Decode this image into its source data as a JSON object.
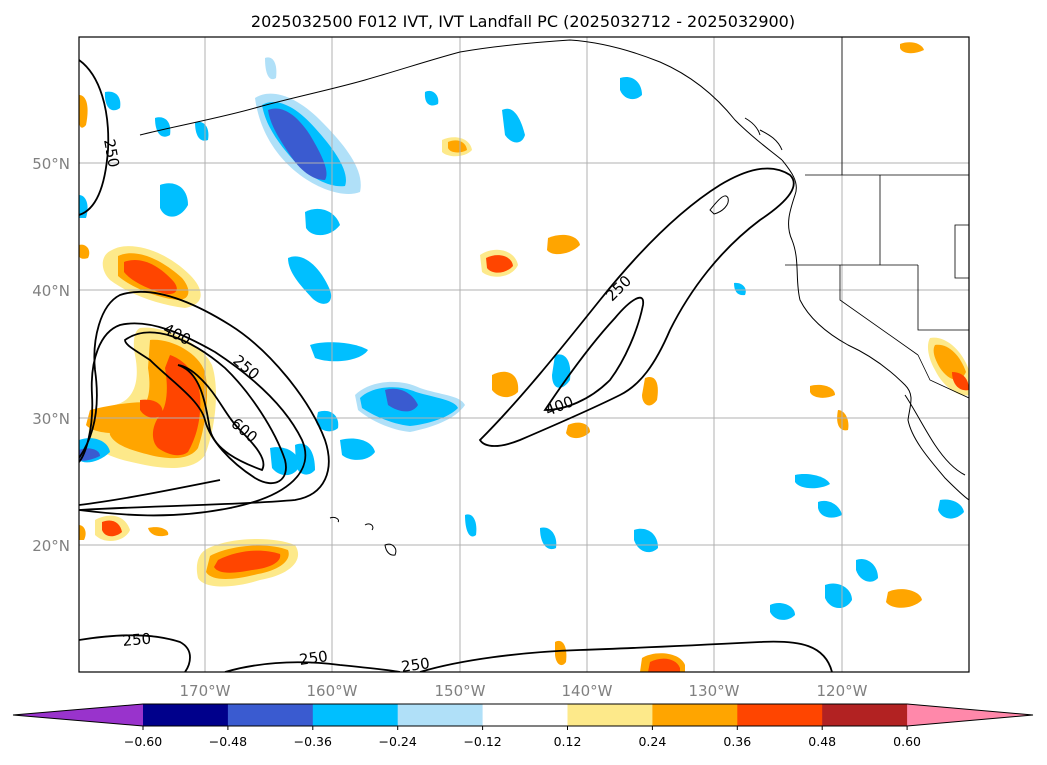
{
  "title": "2025032500 F012 IVT, IVT Landfall PC (2025032712 - 2025032900)",
  "lat_labels": [
    "50°N",
    "40°N",
    "30°N",
    "20°N"
  ],
  "lon_labels": [
    "170°W",
    "160°W",
    "150°W",
    "140°W",
    "130°W",
    "120°W"
  ],
  "contour_labels": [
    "250",
    "400",
    "250",
    "600",
    "250",
    "400",
    "250",
    "250",
    "250"
  ],
  "colorbar": {
    "ticks": [
      "−0.60",
      "−0.48",
      "−0.36",
      "−0.24",
      "−0.12",
      "0.12",
      "0.24",
      "0.36",
      "0.48",
      "0.60"
    ],
    "colors": [
      "#9933cc",
      "#00008b",
      "#3a5bd0",
      "#00bfff",
      "#b0e0f8",
      "#ffffff",
      "#fde98a",
      "#ffa500",
      "#ff4500",
      "#b22222",
      "#ff88aa"
    ]
  }
}
